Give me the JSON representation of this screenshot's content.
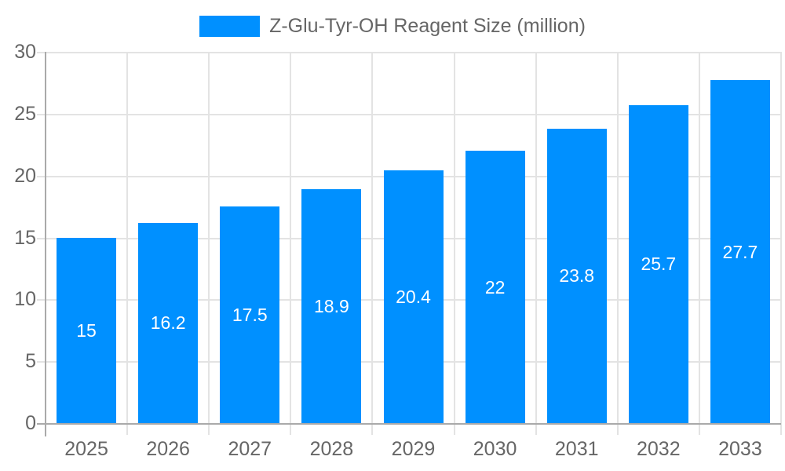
{
  "chart_data": {
    "type": "bar",
    "title": "Z-Glu-Tyr-OH Reagent Size (million)",
    "legend": {
      "label": "Z-Glu-Tyr-OH Reagent Size (million)",
      "position": "top-center"
    },
    "categories": [
      "2025",
      "2026",
      "2027",
      "2028",
      "2029",
      "2030",
      "2031",
      "2032",
      "2033"
    ],
    "series": [
      {
        "name": "Z-Glu-Tyr-OH Reagent Size (million)",
        "values": [
          15,
          16.2,
          17.5,
          18.9,
          20.4,
          22,
          23.8,
          25.7,
          27.7
        ]
      }
    ],
    "value_labels": [
      "15",
      "16.2",
      "17.5",
      "18.9",
      "20.4",
      "22",
      "23.8",
      "25.7",
      "27.7"
    ],
    "xlabel": "",
    "ylabel": "",
    "ylim": [
      0,
      30
    ],
    "y_ticks": [
      0,
      5,
      10,
      15,
      20,
      25,
      30
    ],
    "grid": true,
    "colors": {
      "bar": "#0090FF",
      "data_label": "#FFFFFF",
      "axis_text": "#666666",
      "grid_line": "#E3E3E3",
      "axis_line": "#AAAAAA",
      "background": "#FFFFFF"
    }
  }
}
